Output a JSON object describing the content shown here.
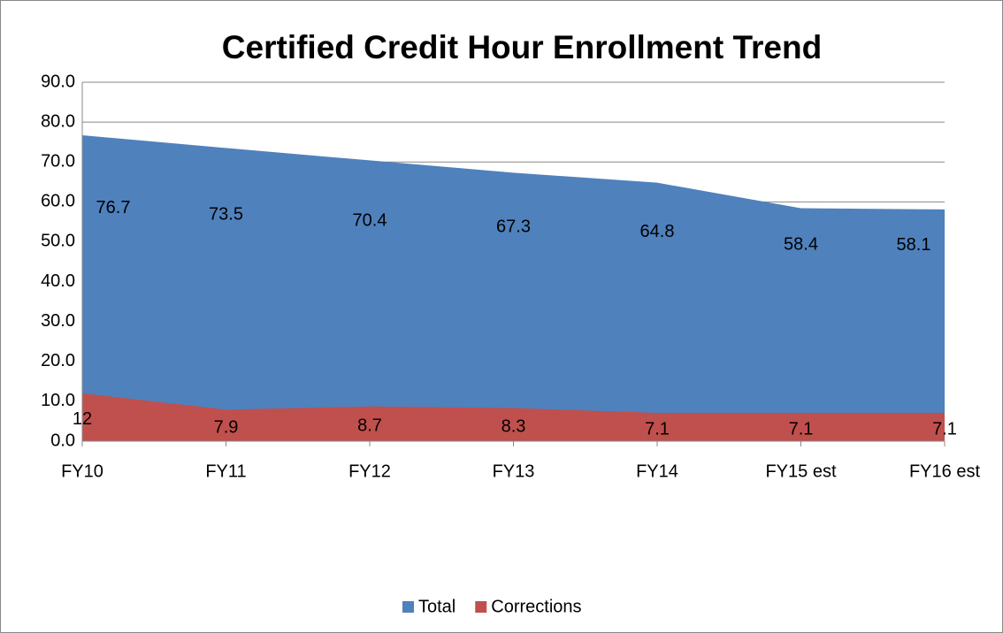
{
  "chart_data": {
    "type": "area",
    "title": "Certified Credit Hour Enrollment Trend",
    "categories": [
      "FY10",
      "FY11",
      "FY12",
      "FY13",
      "FY14",
      "FY15 est",
      "FY16 est"
    ],
    "series": [
      {
        "name": "Total",
        "color": "#4f81bd",
        "values": [
          76.7,
          73.5,
          70.4,
          67.3,
          64.8,
          58.4,
          58.1
        ]
      },
      {
        "name": "Corrections",
        "color": "#c0504d",
        "values": [
          12,
          7.9,
          8.7,
          8.3,
          7.1,
          7.1,
          7.1
        ]
      }
    ],
    "ylim": [
      0,
      90
    ],
    "yticks": [
      {
        "value": 0,
        "label": "0.0"
      },
      {
        "value": 10,
        "label": "10.0"
      },
      {
        "value": 20,
        "label": "20.0"
      },
      {
        "value": 30,
        "label": "30.0"
      },
      {
        "value": 40,
        "label": "40.0"
      },
      {
        "value": 50,
        "label": "50.0"
      },
      {
        "value": 60,
        "label": "60.0"
      },
      {
        "value": 70,
        "label": "70.0"
      },
      {
        "value": 80,
        "label": "80.0"
      },
      {
        "value": 90,
        "label": "90.0"
      }
    ],
    "grid": true,
    "legend": "bottom"
  }
}
